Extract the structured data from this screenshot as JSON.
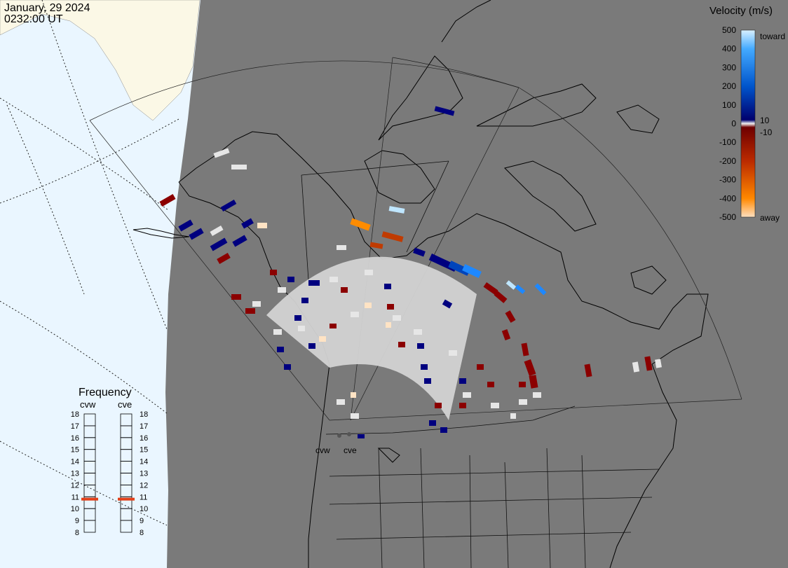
{
  "timestamp": {
    "date": "January, 29 2024",
    "time": "0232:00 UT"
  },
  "colorbar": {
    "title": "Velocity (m/s)",
    "ticks": [
      "500",
      "400",
      "300",
      "200",
      "100",
      "0",
      "-100",
      "-200",
      "-300",
      "-400",
      "-500"
    ],
    "inner_labels": {
      "pos": "10",
      "neg": "-10"
    },
    "end_labels": {
      "toward": "toward",
      "away": "away"
    },
    "colors": [
      "#ffe3c4",
      "#ff8c00",
      "#c03b00",
      "#8b0000",
      "#e6e6e6",
      "#00007f",
      "#0044bb",
      "#1e88ff",
      "#bfe6ff"
    ]
  },
  "frequency_panel": {
    "title": "Frequency",
    "radars": [
      "cvw",
      "cve"
    ],
    "ticks": [
      "18",
      "17",
      "16",
      "15",
      "14",
      "13",
      "12",
      "11",
      "10",
      "9",
      "8"
    ],
    "current_mhz": [
      10.8,
      10.8
    ],
    "marker_color": "#e2401a"
  },
  "radar_sites": [
    "cvw",
    "cve"
  ]
}
